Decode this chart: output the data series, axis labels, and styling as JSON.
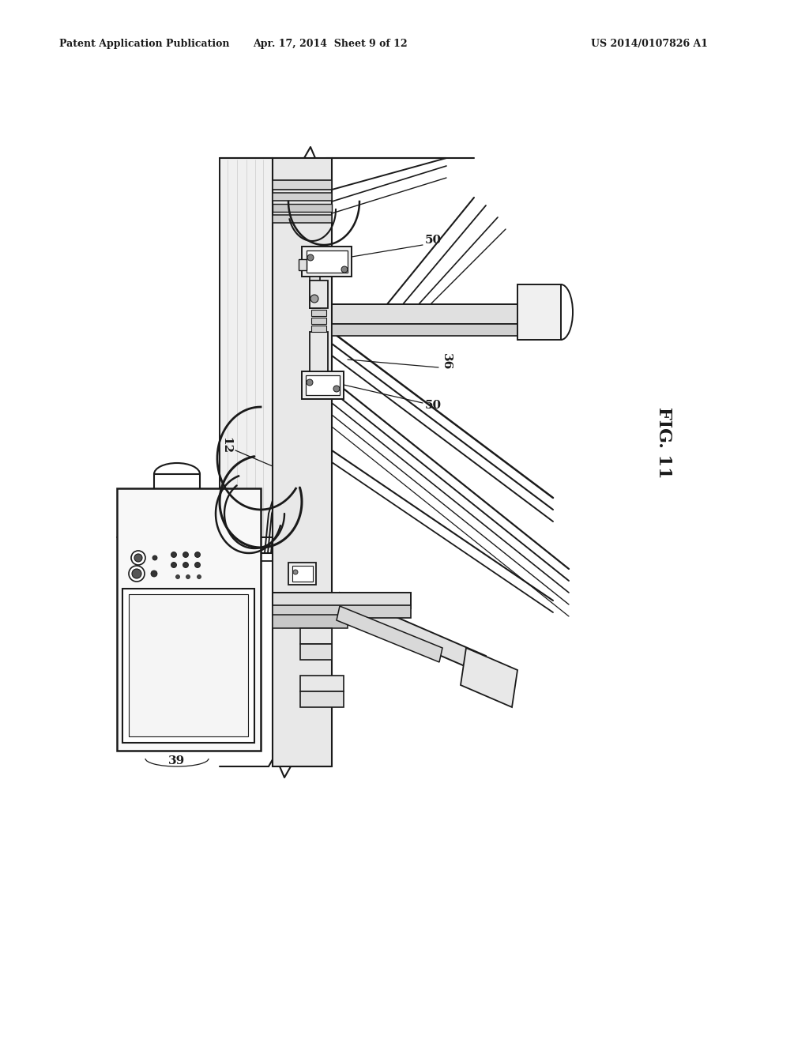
{
  "background_color": "#ffffff",
  "header_left": "Patent Application Publication",
  "header_center": "Apr. 17, 2014  Sheet 9 of 12",
  "header_right": "US 2014/0107826 A1",
  "fig_label": "FIG. 11",
  "line_color": "#1a1a1a",
  "light_gray": "#d0d0d0",
  "mid_gray": "#b0b0b0",
  "dark_line": "#111111"
}
